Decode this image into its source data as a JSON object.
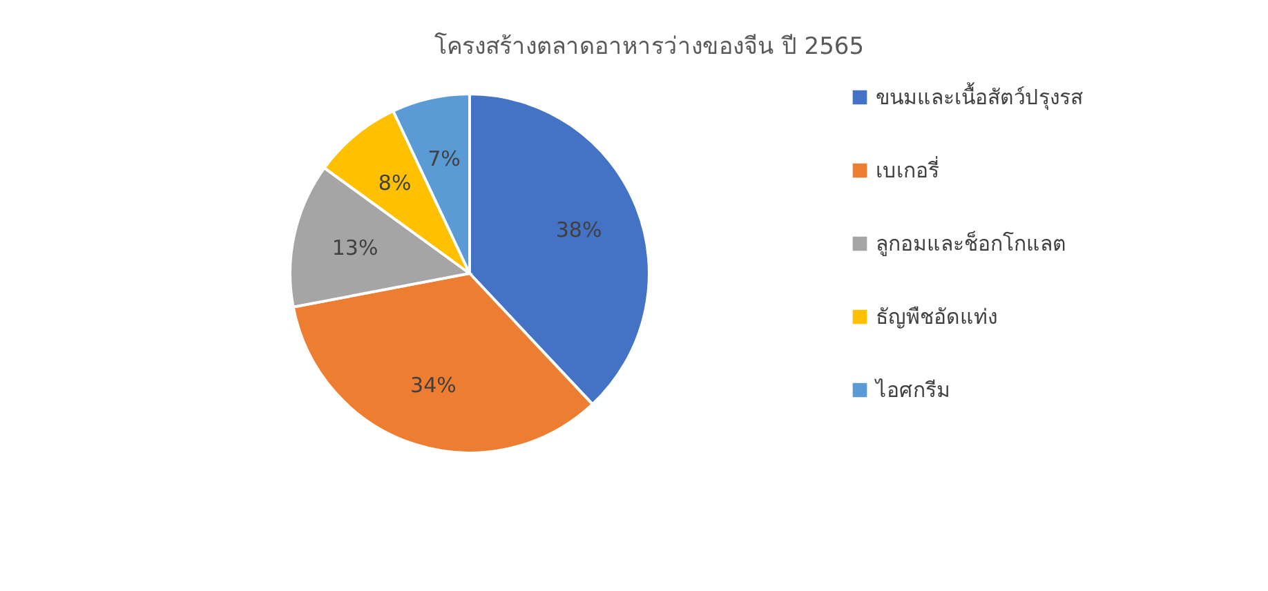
{
  "chart_data": {
    "type": "pie",
    "title": "โครงสร้างตลาดอาหารว่างของจีน ปี 2565",
    "categories": [
      "ขนมและเนื้อสัตว์ปรุงรส",
      "เบเกอรี่",
      "ลูกอมและช็อกโกแลต",
      "ธัญพืชอัดแท่ง",
      "ไอศกรีม"
    ],
    "values": [
      38,
      34,
      13,
      8,
      7
    ],
    "colors": [
      "#4472c4",
      "#ed7d31",
      "#a5a5a5",
      "#ffc000",
      "#5b9bd5"
    ],
    "value_labels": [
      "38%",
      "34%",
      "13%",
      "8%",
      "7%"
    ],
    "legend": "right"
  }
}
